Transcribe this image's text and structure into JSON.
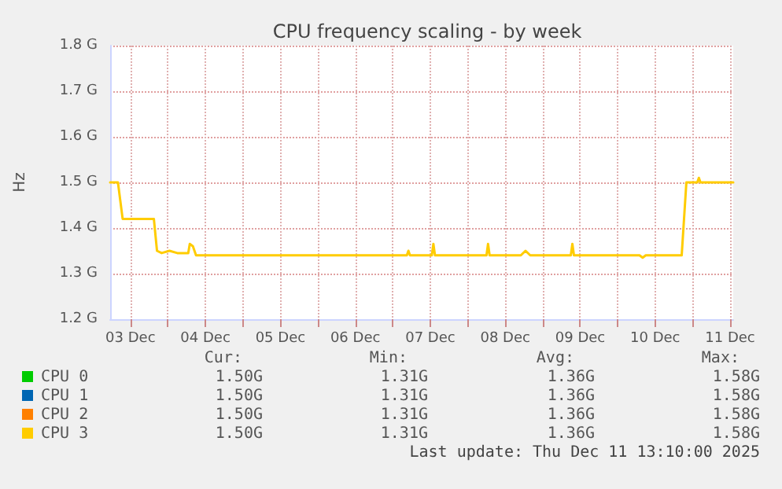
{
  "chart_data": {
    "type": "line",
    "title": "CPU frequency scaling - by week",
    "ylabel": "Hz",
    "x": [
      "2025-12-03T05:30",
      "2025-12-03T08:00",
      "2025-12-03T09:30",
      "2025-12-03T19:30",
      "2025-12-03T20:30",
      "2025-12-03T22:00",
      "2025-12-04T00:30",
      "2025-12-04T03:00",
      "2025-12-04T06:30",
      "2025-12-04T07:00",
      "2025-12-04T08:00",
      "2025-12-04T09:00",
      "2025-12-04T23:00",
      "2025-12-05T19:00",
      "2025-12-07T04:30",
      "2025-12-07T05:00",
      "2025-12-07T05:30",
      "2025-12-07T12:30",
      "2025-12-07T13:00",
      "2025-12-07T13:30",
      "2025-12-08T06:00",
      "2025-12-08T06:30",
      "2025-12-08T07:00",
      "2025-12-08T17:00",
      "2025-12-08T18:30",
      "2025-12-08T20:00",
      "2025-12-09T09:00",
      "2025-12-09T09:30",
      "2025-12-09T10:00",
      "2025-12-10T07:00",
      "2025-12-10T08:00",
      "2025-12-10T09:00",
      "2025-12-10T20:30",
      "2025-12-10T22:00",
      "2025-12-11T01:30",
      "2025-12-11T02:00",
      "2025-12-11T02:30",
      "2025-12-11T13:00"
    ],
    "series": [
      {
        "name": "CPU 0",
        "color": "#00cc00",
        "values": [
          null,
          null,
          null,
          null,
          null,
          null,
          null,
          null,
          null,
          null,
          null,
          null,
          null,
          null,
          null,
          null,
          null,
          null,
          null,
          null,
          null,
          null,
          null,
          null,
          null,
          null,
          null,
          null,
          null,
          null,
          null,
          null,
          null,
          null,
          null,
          null,
          null,
          null
        ]
      },
      {
        "name": "CPU 1",
        "color": "#0066b3",
        "values": [
          null,
          null,
          null,
          null,
          null,
          null,
          null,
          null,
          null,
          null,
          null,
          null,
          null,
          null,
          null,
          null,
          null,
          null,
          null,
          null,
          null,
          null,
          null,
          null,
          null,
          null,
          null,
          null,
          null,
          null,
          null,
          null,
          null,
          null,
          null,
          null,
          null,
          null
        ]
      },
      {
        "name": "CPU 2",
        "color": "#ff8000",
        "values": [
          null,
          null,
          null,
          null,
          null,
          null,
          null,
          null,
          null,
          null,
          null,
          null,
          null,
          null,
          null,
          null,
          null,
          null,
          null,
          null,
          null,
          null,
          null,
          null,
          null,
          null,
          null,
          null,
          null,
          null,
          null,
          null,
          null,
          null,
          null,
          null,
          null,
          null
        ]
      },
      {
        "name": "CPU 3",
        "color": "#ffcc00",
        "values": [
          1.5,
          1.5,
          1.42,
          1.42,
          1.35,
          1.345,
          1.35,
          1.345,
          1.345,
          1.365,
          1.36,
          1.34,
          1.34,
          1.34,
          1.34,
          1.35,
          1.34,
          1.34,
          1.365,
          1.34,
          1.34,
          1.365,
          1.34,
          1.34,
          1.35,
          1.34,
          1.34,
          1.365,
          1.34,
          1.34,
          1.335,
          1.34,
          1.34,
          1.5,
          1.5,
          1.51,
          1.5,
          1.5
        ]
      }
    ],
    "xlim": [
      "2025-12-03T05:30",
      "2025-12-11T13:00"
    ],
    "xticks": [
      {
        "value": "2025-12-03T12:00",
        "label": "03 Dec"
      },
      {
        "value": "2025-12-04T00:00",
        "label": null
      },
      {
        "value": "2025-12-04T12:00",
        "label": "04 Dec"
      },
      {
        "value": "2025-12-05T00:00",
        "label": null
      },
      {
        "value": "2025-12-05T12:00",
        "label": "05 Dec"
      },
      {
        "value": "2025-12-06T00:00",
        "label": null
      },
      {
        "value": "2025-12-06T12:00",
        "label": "06 Dec"
      },
      {
        "value": "2025-12-07T00:00",
        "label": null
      },
      {
        "value": "2025-12-07T12:00",
        "label": "07 Dec"
      },
      {
        "value": "2025-12-08T00:00",
        "label": null
      },
      {
        "value": "2025-12-08T12:00",
        "label": "08 Dec"
      },
      {
        "value": "2025-12-09T00:00",
        "label": null
      },
      {
        "value": "2025-12-09T12:00",
        "label": "09 Dec"
      },
      {
        "value": "2025-12-10T00:00",
        "label": null
      },
      {
        "value": "2025-12-10T12:00",
        "label": "10 Dec"
      },
      {
        "value": "2025-12-11T00:00",
        "label": null
      },
      {
        "value": "2025-12-11T12:00",
        "label": "11 Dec"
      }
    ],
    "ylim": [
      1.2,
      1.8
    ],
    "yticks": [
      {
        "value": 1.2,
        "label": "1.2 G"
      },
      {
        "value": 1.3,
        "label": "1.3 G"
      },
      {
        "value": 1.4,
        "label": "1.4 G"
      },
      {
        "value": 1.5,
        "label": "1.5 G"
      },
      {
        "value": 1.6,
        "label": "1.6 G"
      },
      {
        "value": 1.7,
        "label": "1.7 G"
      },
      {
        "value": 1.8,
        "label": "1.8 G"
      }
    ],
    "grid": true,
    "legend": "bottom",
    "marker": "none",
    "line_style": "solid",
    "annotations": [
      "Cur:",
      "Min:",
      "Avg:",
      "Max:",
      "1.50G",
      "1.31G",
      "1.36G",
      "1.58G",
      "1.50G",
      "1.31G",
      "1.36G",
      "1.58G",
      "1.50G",
      "1.31G",
      "1.36G",
      "1.58G",
      "1.50G",
      "1.31G",
      "1.36G",
      "1.58G",
      "Last update: Thu Dec 11 13:10:00 2025"
    ]
  }
}
